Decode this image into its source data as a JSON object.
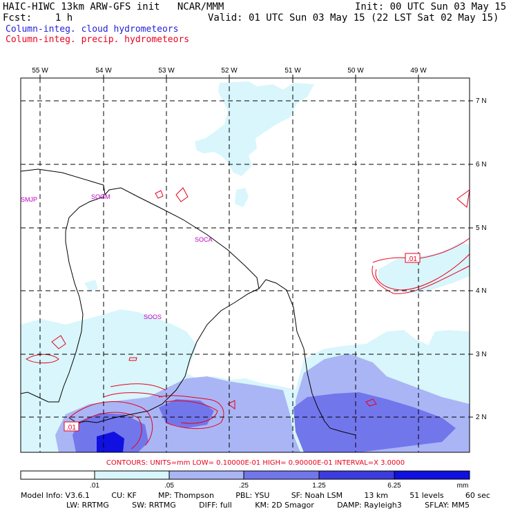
{
  "header": {
    "title": "HAIC-HIWC 13km ARW-GFS init   NCAR/MMM",
    "init": "Init: 00 UTC Sun 03 May 15",
    "fcst": "Fcst:    1 h",
    "valid": "Valid: 01 UTC Sun 03 May 15 (22 LST Sat 02 May 15)",
    "field_cloud": "Column-integ. cloud hydrometeors",
    "field_precip": "Column-integ. precip. hydrometeors"
  },
  "colors": {
    "cloud_text": "#1f1fd6",
    "precip_text": "#e8001c",
    "station_label": "#c000c0",
    "shade_1": "#d8f6fb",
    "shade_2": "#aab5f5",
    "shade_3": "#7276eb",
    "shade_4": "#3c3cde",
    "shade_5": "#1010e0"
  },
  "map": {
    "lon_labels": [
      "55 W",
      "54 W",
      "53 W",
      "52 W",
      "51 W",
      "50 W",
      "49 W"
    ],
    "lat_labels": [
      "7 N",
      "6 N",
      "5 N",
      "4 N",
      "3 N",
      "2 N"
    ],
    "stations": [
      "SMJP",
      "SOGM",
      "SOCA",
      "SOOS"
    ],
    "contour_tags": [
      ".01",
      ".01"
    ]
  },
  "contours_info": "CONTOURS:  UNITS=mm   LOW= 0.10000E-01   HIGH= 0.90000E-01   INTERVAL=X  3.0000",
  "colorbar": {
    "ticks": [
      ".01",
      ".05",
      ".25",
      "1.25",
      "6.25"
    ],
    "units": "mm"
  },
  "model_info": {
    "line1": [
      "Model Info: V3.6.1",
      "CU: KF",
      "MP: Thompson",
      "PBL: YSU",
      "SF: Noah LSM",
      "13 km",
      "51 levels",
      "60 sec"
    ],
    "line2": [
      "LW: RRTMG",
      "SW: RRTMG",
      "DIFF: full",
      "KM: 2D Smagor",
      "DAMP: Rayleigh3",
      "SFLAY: MM5"
    ]
  }
}
